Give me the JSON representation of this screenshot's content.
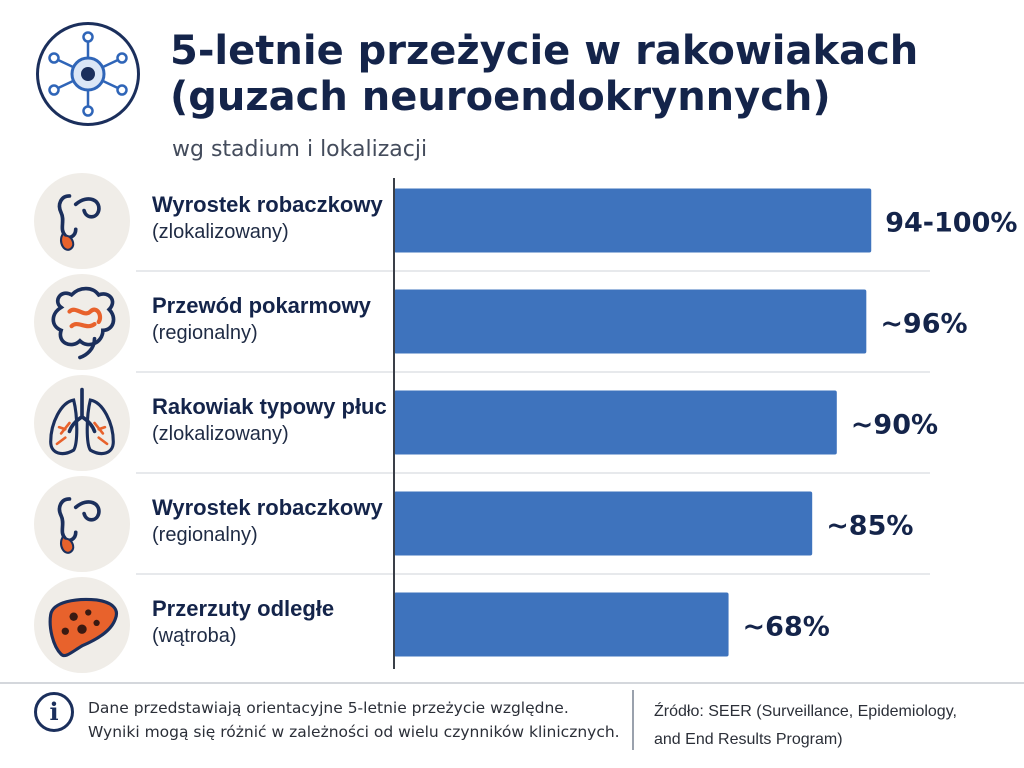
{
  "header": {
    "title_line1": "5-letnie przeżycie w rakowiakach",
    "title_line2": "(guzach neuroendokrynnych)",
    "subtitle": "wg stadium i lokalizacji",
    "logo_icon": "neuroendocrine-cell-icon"
  },
  "chart_data": {
    "type": "bar",
    "orientation": "horizontal",
    "title": "5-letnie przeżycie w rakowiakach (guzach neuroendokrynnych)",
    "subtitle": "wg stadium i lokalizacji",
    "categories": [
      {
        "name": "Wyrostek robaczkowy",
        "sub": "(zlokalizowany)",
        "icon": "appendix-icon"
      },
      {
        "name": "Przewód pokarmowy",
        "sub": "(regionalny)",
        "icon": "intestine-icon"
      },
      {
        "name": "Rakowiak typowy płuc",
        "sub": "(zlokalizowany)",
        "icon": "lungs-icon"
      },
      {
        "name": "Wyrostek robaczkowy",
        "sub": "(regionalny)",
        "icon": "appendix-icon"
      },
      {
        "name": "Przerzuty odległe",
        "sub": "(wątroba)",
        "icon": "liver-icon"
      }
    ],
    "values": [
      97,
      96,
      90,
      85,
      68
    ],
    "value_ranges": [
      [
        94,
        100
      ],
      null,
      null,
      null,
      null
    ],
    "data_labels": [
      "94-100%",
      "~96%",
      "~90%",
      "~85%",
      "~68%"
    ],
    "xlim": [
      0,
      100
    ],
    "bar_color": "#3e73bd",
    "grid": true,
    "legend": "none"
  },
  "footer": {
    "note_line1": "Dane przedstawiają orientacyjne 5-letnie przeżycie względne.",
    "note_line2": "Wyniki mogą się różnić w zależności od wielu czynników klinicznych.",
    "source_line1": "Źródło: SEER (Surveillance, Epidemiology,",
    "source_line2": "and End Results Program)",
    "info_icon": "info-icon"
  },
  "colors": {
    "title": "#14244a",
    "bar": "#3e73bd",
    "accent_orange": "#e8622c",
    "icon_background": "#f0ede8"
  }
}
